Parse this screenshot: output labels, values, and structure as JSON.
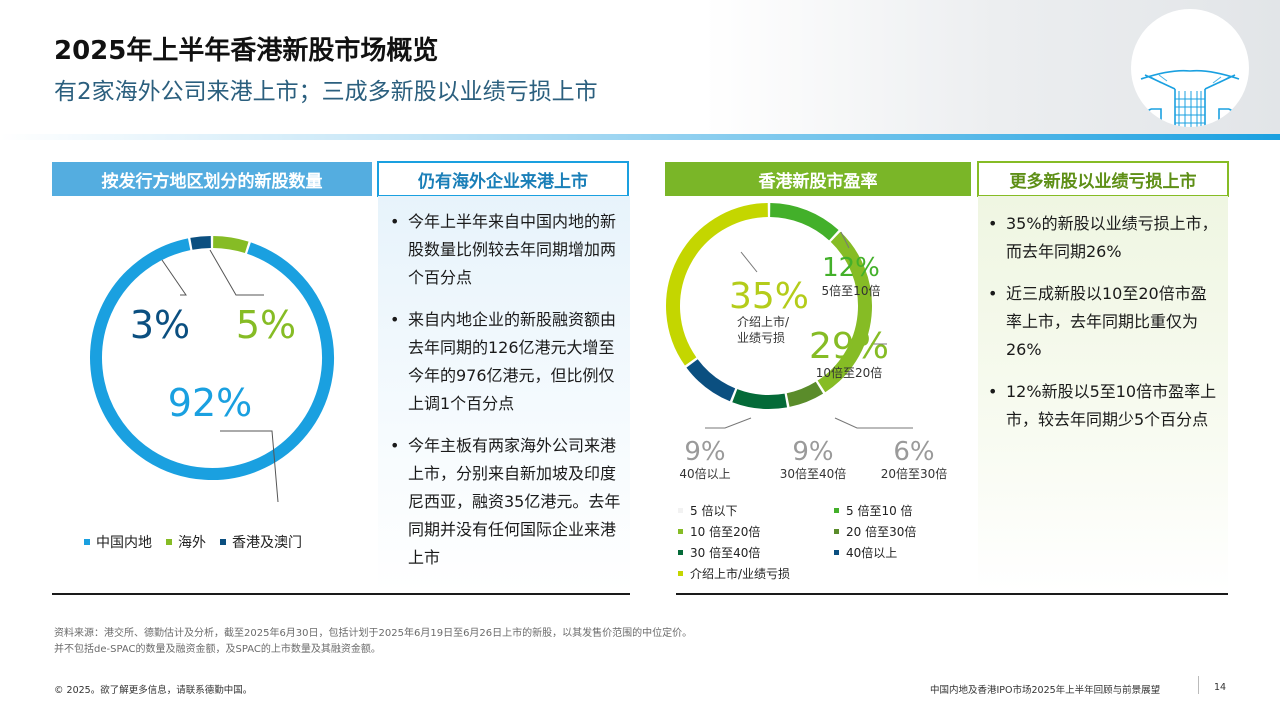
{
  "header": {
    "title": "2025年上半年香港新股市场概览",
    "subtitle": "有2家海外公司来港上市；三成多新股以业绩亏损上市"
  },
  "panels": {
    "region_chart_header": "按发行方地区划分的新股数量",
    "overseas_header": "仍有海外企业来港上市",
    "pe_chart_header": "香港新股市盈率",
    "loss_header": "更多新股以业绩亏损上市"
  },
  "overseas_bullets": [
    "今年上半年来自中国内地的新股数量比例较去年同期增加两个百分点",
    "来自内地企业的新股融资额由去年同期的126亿港元大增至今年的976亿港元，但比例仅上调1个百分点",
    "今年主板有两家海外公司来港上市，分别来自新加坡及印度尼西亚，融资35亿港元。去年同期并没有任何国际企业来港上市"
  ],
  "loss_bullets": [
    "35%的新股以业绩亏损上市，而去年同期26%",
    "近三成新股以10至20倍市盈率上市，去年同期比重仅为26%",
    "12%新股以5至10倍市盈率上市，较去年同期少5个百分点"
  ],
  "chart_data": [
    {
      "type": "pie",
      "variant": "donut",
      "title": "按发行方地区划分的新股数量",
      "categories": [
        "中国内地",
        "海外",
        "香港及澳门"
      ],
      "values": [
        92,
        5,
        3
      ],
      "value_labels": [
        "92%",
        "5%",
        "3%"
      ],
      "colors": [
        "#1aa0e0",
        "#86bc25",
        "#0b4f80"
      ],
      "legend_position": "bottom-left"
    },
    {
      "type": "pie",
      "variant": "donut",
      "title": "香港新股市盈率",
      "slices": [
        {
          "name": "5倍至10倍",
          "value": 12,
          "label": "12%",
          "sublabel": "5倍至10倍",
          "color": "#43b02a"
        },
        {
          "name": "10倍至20倍",
          "value": 29,
          "label": "29%",
          "sublabel": "10倍至20倍",
          "color": "#86bc25"
        },
        {
          "name": "20倍至30倍",
          "value": 6,
          "label": "6%",
          "sublabel": "20倍至30倍",
          "color": "#5a8c2a"
        },
        {
          "name": "30倍至40倍",
          "value": 9,
          "label": "9%",
          "sublabel": "30倍至40倍",
          "color": "#046a38"
        },
        {
          "name": "40倍以上",
          "value": 9,
          "label": "9%",
          "sublabel": "40倍以上",
          "color": "#0b4f80"
        },
        {
          "name": "介绍上市/业绩亏损",
          "value": 35,
          "label": "35%",
          "sublabel": "介绍上市/业绩亏损",
          "color": "#c4d600"
        }
      ],
      "legend": [
        {
          "label": "5 倍以下",
          "color": "#f2f2f2"
        },
        {
          "label": "5 倍至10 倍",
          "color": "#43b02a"
        },
        {
          "label": "10 倍至20倍",
          "color": "#86bc25"
        },
        {
          "label": "20 倍至30倍",
          "color": "#5a8c2a"
        },
        {
          "label": "30 倍至40倍",
          "color": "#046a38"
        },
        {
          "label": "40倍以上",
          "color": "#0b4f80"
        },
        {
          "label": "介绍上市/业绩亏损",
          "color": "#c4d600"
        }
      ]
    }
  ],
  "source": {
    "line1": "资料来源：港交所、德勤估计及分析，截至2025年6月30日，包括计划于2025年6月19日至6月26日上市的新股，以其发售价范围的中位定价。",
    "line2": "并不包括de-SPAC的数量及融资金额，及SPAC的上市数量及其融资金额。"
  },
  "footer": {
    "copyright": "© 2025。欲了解更多信息，请联系德勤中国。",
    "report_title": "中国内地及香港IPO市场2025年上半年回顾与前景展望",
    "page_number": "14"
  }
}
